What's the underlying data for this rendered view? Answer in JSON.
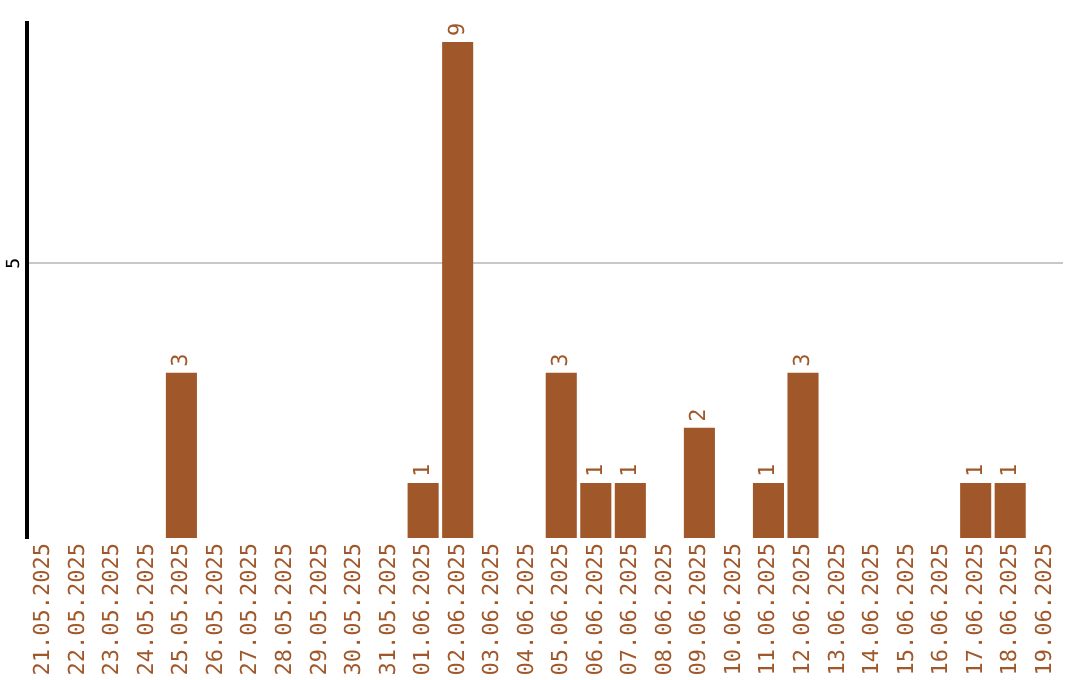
{
  "chart_data": {
    "type": "bar",
    "categories": [
      "21.05.2025",
      "22.05.2025",
      "23.05.2025",
      "24.05.2025",
      "25.05.2025",
      "26.05.2025",
      "27.05.2025",
      "28.05.2025",
      "29.05.2025",
      "30.05.2025",
      "31.05.2025",
      "01.06.2025",
      "02.06.2025",
      "03.06.2025",
      "04.06.2025",
      "05.06.2025",
      "06.06.2025",
      "07.06.2025",
      "08.06.2025",
      "09.06.2025",
      "10.06.2025",
      "11.06.2025",
      "12.06.2025",
      "13.06.2025",
      "14.06.2025",
      "15.06.2025",
      "16.06.2025",
      "17.06.2025",
      "18.06.2025",
      "19.06.2025"
    ],
    "values": [
      0,
      0,
      0,
      0,
      3,
      0,
      0,
      0,
      0,
      0,
      0,
      1,
      9,
      0,
      0,
      3,
      1,
      1,
      0,
      2,
      0,
      1,
      3,
      0,
      0,
      0,
      0,
      1,
      1,
      0
    ],
    "value_labels": [
      null,
      null,
      null,
      null,
      "3",
      null,
      null,
      null,
      null,
      null,
      null,
      "1",
      "9",
      null,
      null,
      "3",
      "1",
      "1",
      null,
      "2",
      null,
      "1",
      "3",
      null,
      null,
      null,
      null,
      "1",
      "1",
      null
    ],
    "color": "#a0572a",
    "ylim": [
      0,
      9.4
    ],
    "yticks": [
      5
    ],
    "grid": "y"
  }
}
